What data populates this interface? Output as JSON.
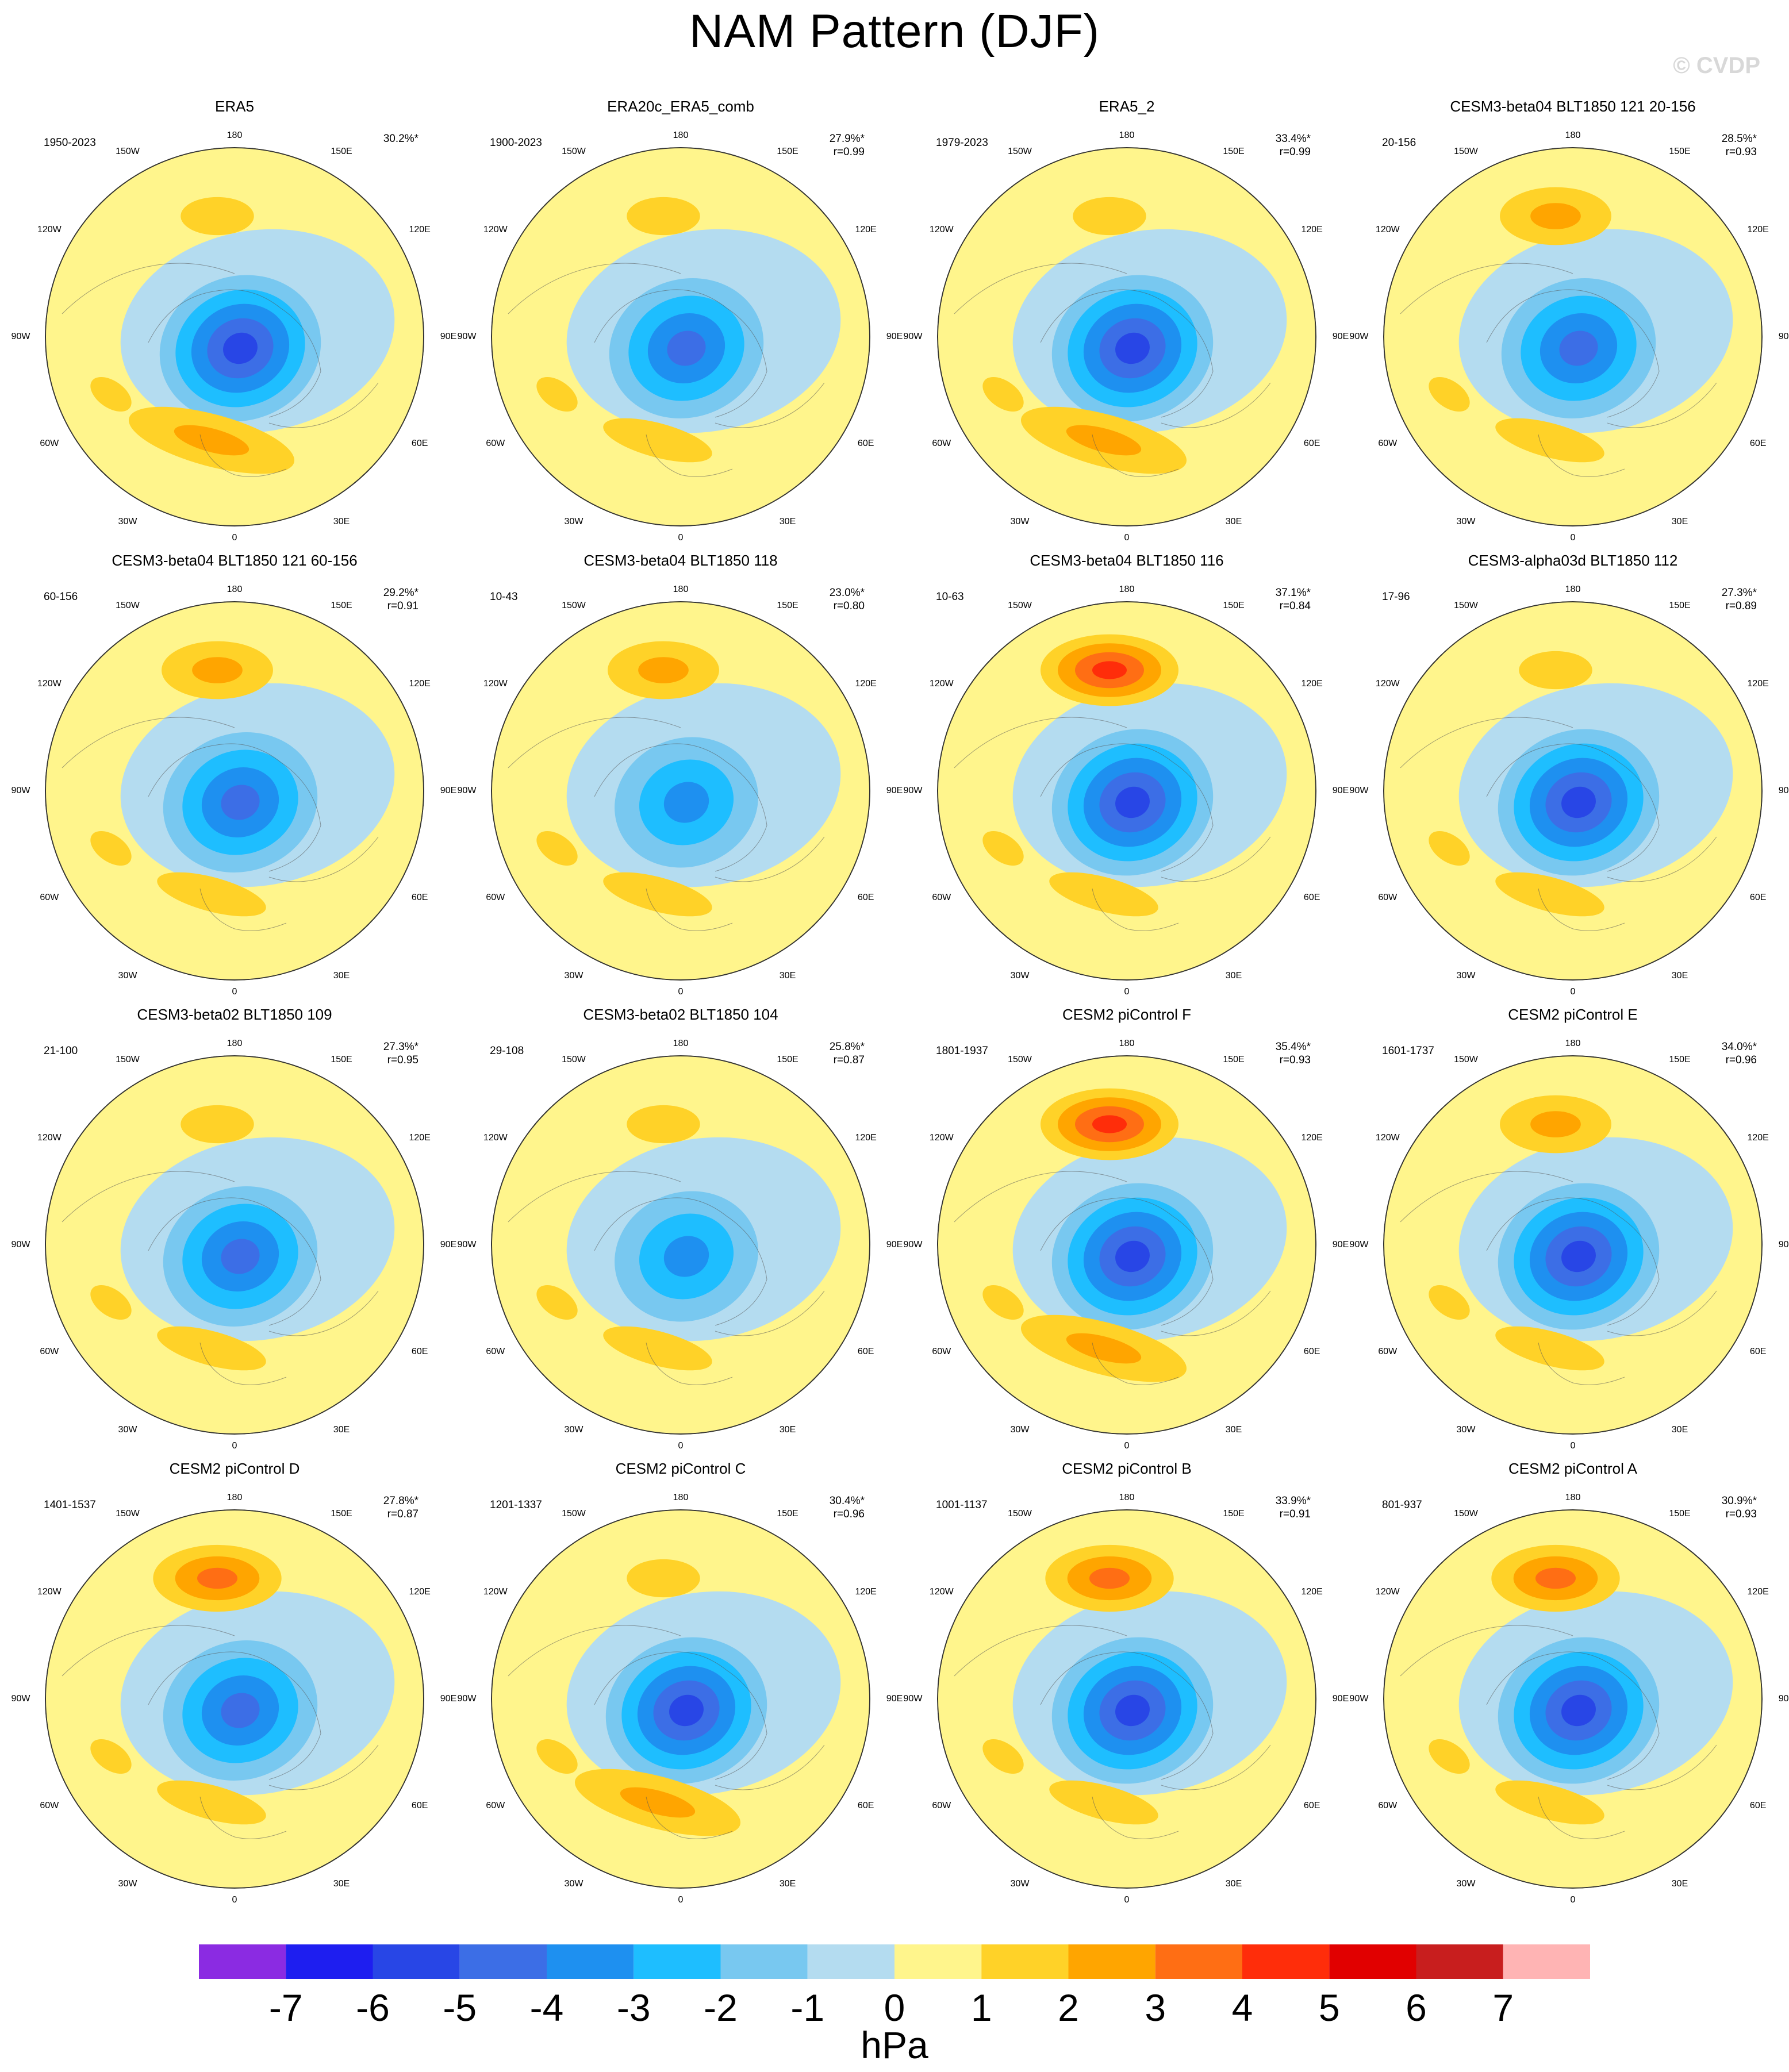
{
  "header": {
    "title": "NAM Pattern (DJF)",
    "watermark": "© CVDP"
  },
  "panels": [
    {
      "title": "ERA5",
      "years": "1950-2023",
      "pct": "30.2%*",
      "r": ""
    },
    {
      "title": "ERA20c_ERA5_comb",
      "years": "1900-2023",
      "pct": "27.9%*",
      "r": "r=0.99"
    },
    {
      "title": "ERA5_2",
      "years": "1979-2023",
      "pct": "33.4%*",
      "r": "r=0.99"
    },
    {
      "title": "CESM3-beta04 BLT1850 121 20-156",
      "years": "20-156",
      "pct": "28.5%*",
      "r": "r=0.93"
    },
    {
      "title": "CESM3-beta04 BLT1850 121 60-156",
      "years": "60-156",
      "pct": "29.2%*",
      "r": "r=0.91"
    },
    {
      "title": "CESM3-beta04 BLT1850 118",
      "years": "10-43",
      "pct": "23.0%*",
      "r": "r=0.80"
    },
    {
      "title": "CESM3-beta04 BLT1850 116",
      "years": "10-63",
      "pct": "37.1%*",
      "r": "r=0.84"
    },
    {
      "title": "CESM3-alpha03d BLT1850 112",
      "years": "17-96",
      "pct": "27.3%*",
      "r": "r=0.89"
    },
    {
      "title": "CESM3-beta02 BLT1850 109",
      "years": "21-100",
      "pct": "27.3%*",
      "r": "r=0.95"
    },
    {
      "title": "CESM3-beta02 BLT1850 104",
      "years": "29-108",
      "pct": "25.8%*",
      "r": "r=0.87"
    },
    {
      "title": "CESM2 piControl F",
      "years": "1801-1937",
      "pct": "35.4%*",
      "r": "r=0.93"
    },
    {
      "title": "CESM2 piControl E",
      "years": "1601-1737",
      "pct": "34.0%*",
      "r": "r=0.96"
    },
    {
      "title": "CESM2 piControl D",
      "years": "1401-1537",
      "pct": "27.8%*",
      "r": "r=0.87"
    },
    {
      "title": "CESM2 piControl C",
      "years": "1201-1337",
      "pct": "30.4%*",
      "r": "r=0.96"
    },
    {
      "title": "CESM2 piControl B",
      "years": "1001-1137",
      "pct": "33.9%*",
      "r": "r=0.91"
    },
    {
      "title": "CESM2 piControl A",
      "years": "801-937",
      "pct": "30.9%*",
      "r": "r=0.93"
    }
  ],
  "lon_labels": [
    "180",
    "150E",
    "120E",
    "90E",
    "60E",
    "30E",
    "0",
    "30W",
    "60W",
    "90W",
    "120W",
    "150W"
  ],
  "colorbar": {
    "unit": "hPa",
    "ticks": [
      "-7",
      "-6",
      "-5",
      "-4",
      "-3",
      "-2",
      "-1",
      "0",
      "1",
      "2",
      "3",
      "4",
      "5",
      "6",
      "7"
    ],
    "colors": [
      "#8b2be2",
      "#1e1ef0",
      "#2846e6",
      "#3c6ee6",
      "#1e90f0",
      "#1ebeff",
      "#78c8f0",
      "#b4dcf0",
      "#fff58c",
      "#ffd228",
      "#ffa500",
      "#ff6e14",
      "#ff2d0a",
      "#e10000",
      "#c81e1e",
      "#ffb4b4"
    ]
  }
}
